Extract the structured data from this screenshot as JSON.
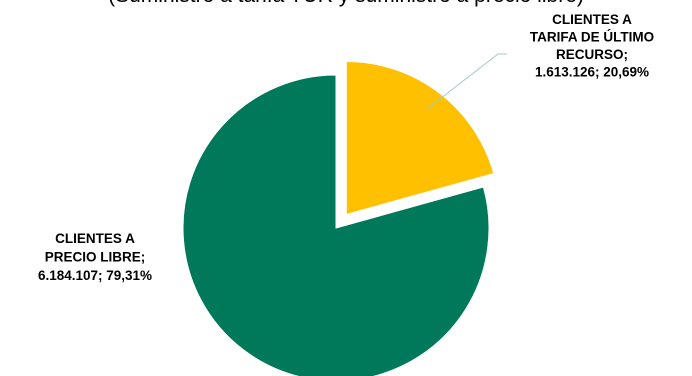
{
  "chart_data": {
    "type": "pie",
    "title": "(Suministro a tarifa TUR y suministro a precio libre)",
    "slices": [
      {
        "category": "CLIENTES A TARIFA DE ÚLTIMO RECURSO",
        "value": 1613126,
        "value_label": "1.613.126",
        "percent_label": "20,69%",
        "color": "#ffc000",
        "exploded": true,
        "label_lines": [
          "CLIENTES A",
          "TARIFA DE ÚLTIMO",
          "RECURSO;",
          "1.613.126; 20,69%"
        ]
      },
      {
        "category": "CLIENTES A PRECIO LIBRE",
        "value": 6184107,
        "value_label": "6.184.107",
        "percent_label": "79,31%",
        "color": "#00785a",
        "exploded": false,
        "label_lines": [
          "CLIENTES A",
          "PRECIO LIBRE;",
          "6.184.107; 79,31%"
        ]
      }
    ],
    "start_angle": "12 o'clock, clockwise",
    "legend": "none",
    "leader_line_color": "#a6c8c8"
  }
}
